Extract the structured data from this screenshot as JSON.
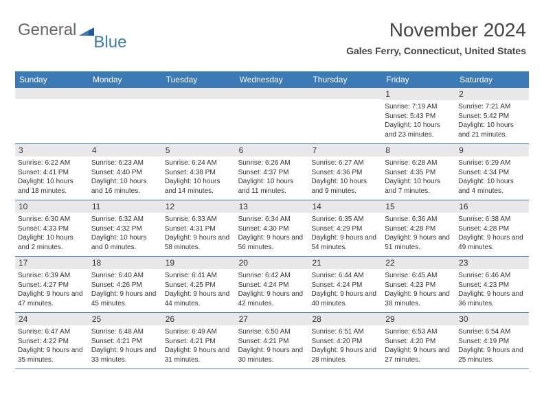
{
  "logo": {
    "part1": "General",
    "part2": "Blue"
  },
  "header": {
    "month": "November 2024",
    "location": "Gales Ferry, Connecticut, United States"
  },
  "dayNames": [
    "Sunday",
    "Monday",
    "Tuesday",
    "Wednesday",
    "Thursday",
    "Friday",
    "Saturday"
  ],
  "colors": {
    "header_bg": "#3b7ab5",
    "daynum_bg": "#e8e8e8",
    "border": "#3b7ab5"
  },
  "weeks": [
    [
      {
        "empty": true
      },
      {
        "empty": true
      },
      {
        "empty": true
      },
      {
        "empty": true
      },
      {
        "empty": true
      },
      {
        "n": "1",
        "sunrise": "Sunrise: 7:19 AM",
        "sunset": "Sunset: 5:43 PM",
        "daylight": "Daylight: 10 hours and 23 minutes."
      },
      {
        "n": "2",
        "sunrise": "Sunrise: 7:21 AM",
        "sunset": "Sunset: 5:42 PM",
        "daylight": "Daylight: 10 hours and 21 minutes."
      }
    ],
    [
      {
        "n": "3",
        "sunrise": "Sunrise: 6:22 AM",
        "sunset": "Sunset: 4:41 PM",
        "daylight": "Daylight: 10 hours and 18 minutes."
      },
      {
        "n": "4",
        "sunrise": "Sunrise: 6:23 AM",
        "sunset": "Sunset: 4:40 PM",
        "daylight": "Daylight: 10 hours and 16 minutes."
      },
      {
        "n": "5",
        "sunrise": "Sunrise: 6:24 AM",
        "sunset": "Sunset: 4:38 PM",
        "daylight": "Daylight: 10 hours and 14 minutes."
      },
      {
        "n": "6",
        "sunrise": "Sunrise: 6:26 AM",
        "sunset": "Sunset: 4:37 PM",
        "daylight": "Daylight: 10 hours and 11 minutes."
      },
      {
        "n": "7",
        "sunrise": "Sunrise: 6:27 AM",
        "sunset": "Sunset: 4:36 PM",
        "daylight": "Daylight: 10 hours and 9 minutes."
      },
      {
        "n": "8",
        "sunrise": "Sunrise: 6:28 AM",
        "sunset": "Sunset: 4:35 PM",
        "daylight": "Daylight: 10 hours and 7 minutes."
      },
      {
        "n": "9",
        "sunrise": "Sunrise: 6:29 AM",
        "sunset": "Sunset: 4:34 PM",
        "daylight": "Daylight: 10 hours and 4 minutes."
      }
    ],
    [
      {
        "n": "10",
        "sunrise": "Sunrise: 6:30 AM",
        "sunset": "Sunset: 4:33 PM",
        "daylight": "Daylight: 10 hours and 2 minutes."
      },
      {
        "n": "11",
        "sunrise": "Sunrise: 6:32 AM",
        "sunset": "Sunset: 4:32 PM",
        "daylight": "Daylight: 10 hours and 0 minutes."
      },
      {
        "n": "12",
        "sunrise": "Sunrise: 6:33 AM",
        "sunset": "Sunset: 4:31 PM",
        "daylight": "Daylight: 9 hours and 58 minutes."
      },
      {
        "n": "13",
        "sunrise": "Sunrise: 6:34 AM",
        "sunset": "Sunset: 4:30 PM",
        "daylight": "Daylight: 9 hours and 56 minutes."
      },
      {
        "n": "14",
        "sunrise": "Sunrise: 6:35 AM",
        "sunset": "Sunset: 4:29 PM",
        "daylight": "Daylight: 9 hours and 54 minutes."
      },
      {
        "n": "15",
        "sunrise": "Sunrise: 6:36 AM",
        "sunset": "Sunset: 4:28 PM",
        "daylight": "Daylight: 9 hours and 51 minutes."
      },
      {
        "n": "16",
        "sunrise": "Sunrise: 6:38 AM",
        "sunset": "Sunset: 4:28 PM",
        "daylight": "Daylight: 9 hours and 49 minutes."
      }
    ],
    [
      {
        "n": "17",
        "sunrise": "Sunrise: 6:39 AM",
        "sunset": "Sunset: 4:27 PM",
        "daylight": "Daylight: 9 hours and 47 minutes."
      },
      {
        "n": "18",
        "sunrise": "Sunrise: 6:40 AM",
        "sunset": "Sunset: 4:26 PM",
        "daylight": "Daylight: 9 hours and 45 minutes."
      },
      {
        "n": "19",
        "sunrise": "Sunrise: 6:41 AM",
        "sunset": "Sunset: 4:25 PM",
        "daylight": "Daylight: 9 hours and 44 minutes."
      },
      {
        "n": "20",
        "sunrise": "Sunrise: 6:42 AM",
        "sunset": "Sunset: 4:24 PM",
        "daylight": "Daylight: 9 hours and 42 minutes."
      },
      {
        "n": "21",
        "sunrise": "Sunrise: 6:44 AM",
        "sunset": "Sunset: 4:24 PM",
        "daylight": "Daylight: 9 hours and 40 minutes."
      },
      {
        "n": "22",
        "sunrise": "Sunrise: 6:45 AM",
        "sunset": "Sunset: 4:23 PM",
        "daylight": "Daylight: 9 hours and 38 minutes."
      },
      {
        "n": "23",
        "sunrise": "Sunrise: 6:46 AM",
        "sunset": "Sunset: 4:23 PM",
        "daylight": "Daylight: 9 hours and 36 minutes."
      }
    ],
    [
      {
        "n": "24",
        "sunrise": "Sunrise: 6:47 AM",
        "sunset": "Sunset: 4:22 PM",
        "daylight": "Daylight: 9 hours and 35 minutes."
      },
      {
        "n": "25",
        "sunrise": "Sunrise: 6:48 AM",
        "sunset": "Sunset: 4:21 PM",
        "daylight": "Daylight: 9 hours and 33 minutes."
      },
      {
        "n": "26",
        "sunrise": "Sunrise: 6:49 AM",
        "sunset": "Sunset: 4:21 PM",
        "daylight": "Daylight: 9 hours and 31 minutes."
      },
      {
        "n": "27",
        "sunrise": "Sunrise: 6:50 AM",
        "sunset": "Sunset: 4:21 PM",
        "daylight": "Daylight: 9 hours and 30 minutes."
      },
      {
        "n": "28",
        "sunrise": "Sunrise: 6:51 AM",
        "sunset": "Sunset: 4:20 PM",
        "daylight": "Daylight: 9 hours and 28 minutes."
      },
      {
        "n": "29",
        "sunrise": "Sunrise: 6:53 AM",
        "sunset": "Sunset: 4:20 PM",
        "daylight": "Daylight: 9 hours and 27 minutes."
      },
      {
        "n": "30",
        "sunrise": "Sunrise: 6:54 AM",
        "sunset": "Sunset: 4:19 PM",
        "daylight": "Daylight: 9 hours and 25 minutes."
      }
    ]
  ]
}
